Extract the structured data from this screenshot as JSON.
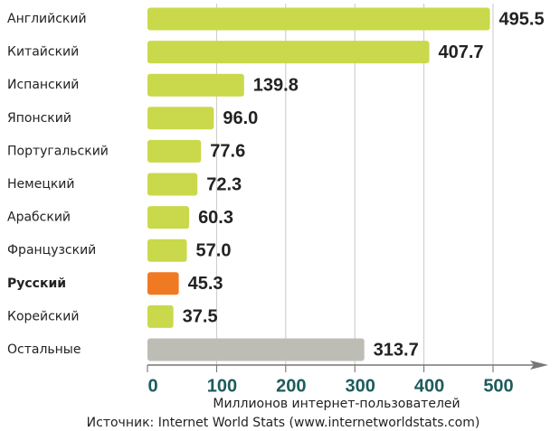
{
  "chart_data": {
    "type": "hbar",
    "categories": [
      "Английский",
      "Китайский",
      "Испанский",
      "Японский",
      "Португальский",
      "Немецкий",
      "Арабский",
      "Французский",
      "Русский",
      "Корейский",
      "Остальные"
    ],
    "values": [
      495.5,
      407.7,
      139.8,
      96.0,
      77.6,
      72.3,
      60.3,
      57.0,
      45.3,
      37.5,
      313.7
    ],
    "value_labels": [
      "495.5",
      "407.7",
      "139.8",
      "96.0",
      "77.6",
      "72.3",
      "60.3",
      "57.0",
      "45.3",
      "37.5",
      "313.7"
    ],
    "colors": [
      "#c9d94b",
      "#c9d94b",
      "#c9d94b",
      "#c9d94b",
      "#c9d94b",
      "#c9d94b",
      "#c9d94b",
      "#c9d94b",
      "#f07a22",
      "#c9d94b",
      "#bdbdb6"
    ],
    "highlight": 8,
    "xlim": [
      0,
      500
    ],
    "xticks": [
      0,
      100,
      200,
      300,
      400,
      500
    ],
    "grid": true,
    "x_label": "Миллионов интернет-пользователей",
    "source": "Источник: Internet World Stats (www.internetworldstats.com)"
  }
}
